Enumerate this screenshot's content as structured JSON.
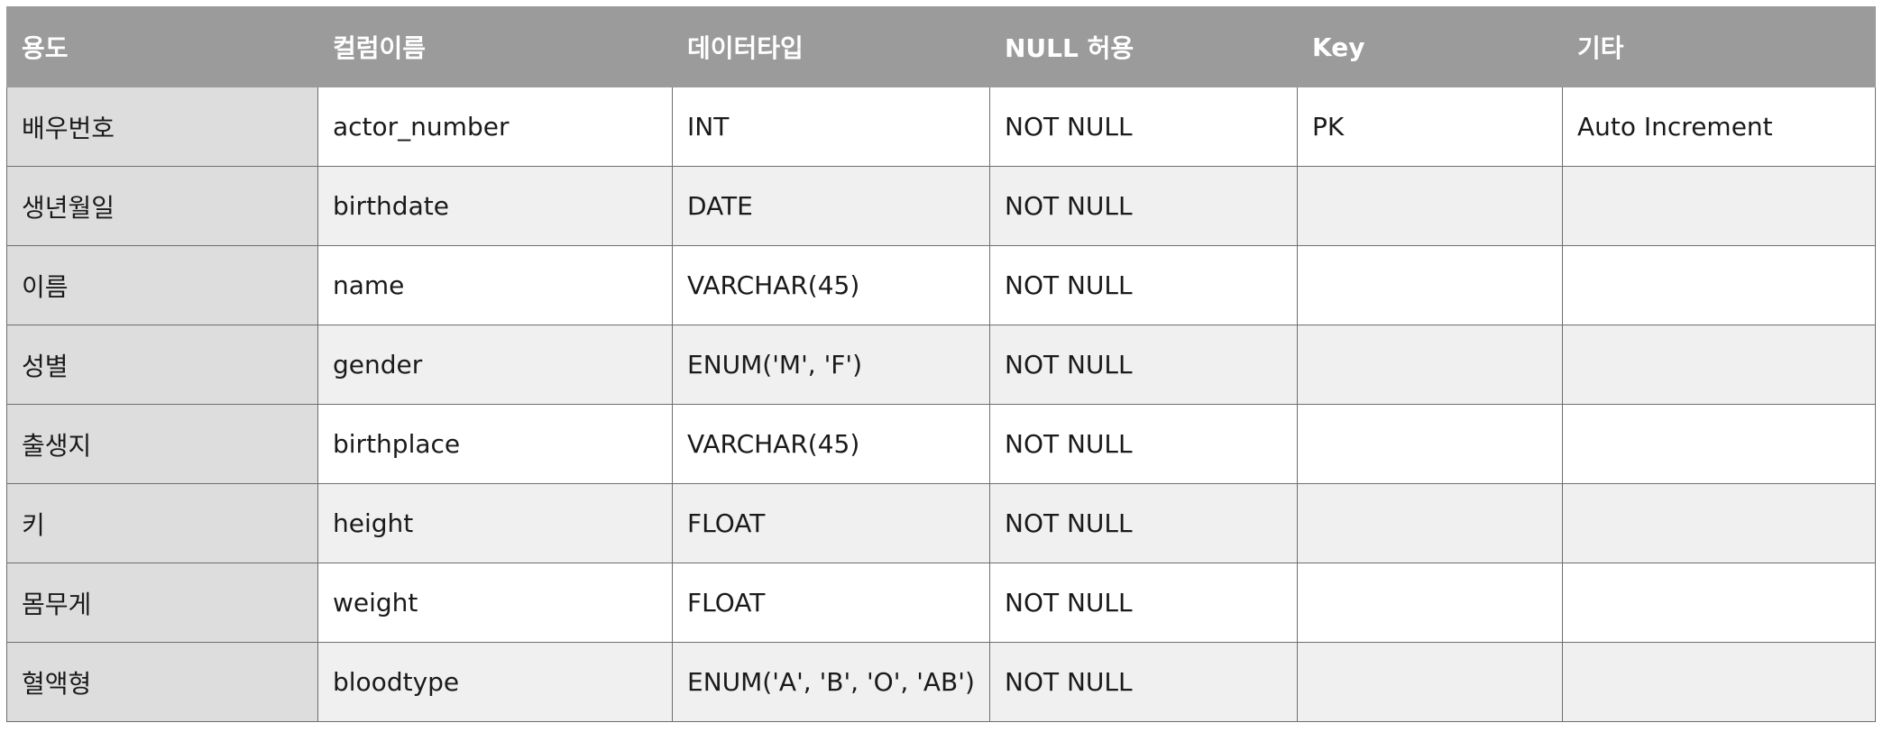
{
  "table": {
    "headers": [
      "용도",
      "컬럼이름",
      "데이터타입",
      "NULL 허용",
      "Key",
      "기타"
    ],
    "rows": [
      [
        "배우번호",
        "actor_number",
        "INT",
        "NOT NULL",
        "PK",
        "Auto Increment"
      ],
      [
        "생년월일",
        "birthdate",
        "DATE",
        "NOT NULL",
        "",
        ""
      ],
      [
        "이름",
        "name",
        "VARCHAR(45)",
        "NOT NULL",
        "",
        ""
      ],
      [
        "성별",
        "gender",
        "ENUM('M', 'F')",
        "NOT NULL",
        "",
        ""
      ],
      [
        "출생지",
        "birthplace",
        "VARCHAR(45)",
        "NOT NULL",
        "",
        ""
      ],
      [
        "키",
        "height",
        "FLOAT",
        "NOT NULL",
        "",
        ""
      ],
      [
        "몸무게",
        "weight",
        "FLOAT",
        "NOT NULL",
        "",
        ""
      ],
      [
        "혈액형",
        "bloodtype",
        "ENUM('A', 'B', 'O', 'AB')",
        "NOT NULL",
        "",
        ""
      ]
    ]
  }
}
